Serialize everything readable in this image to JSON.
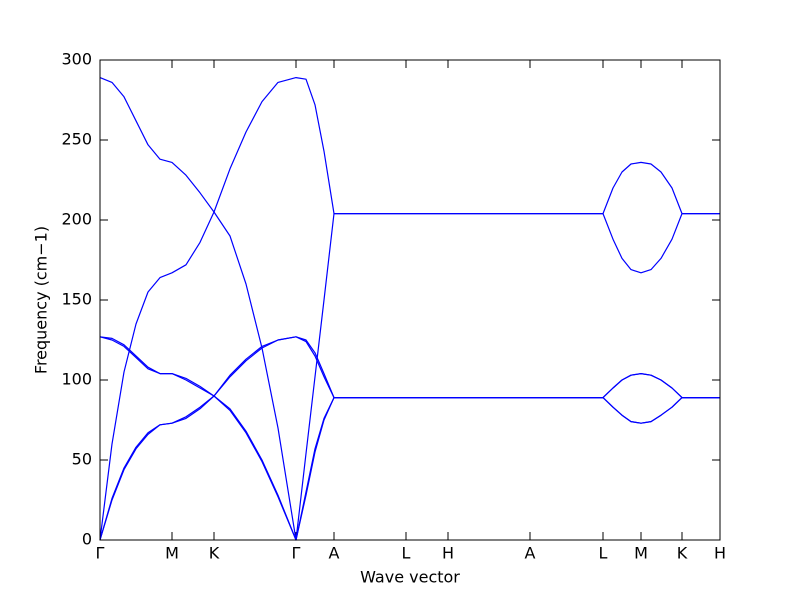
{
  "chart_data": {
    "type": "line",
    "xlabel": "Wave vector",
    "ylabel": "Frequency (cm−1)",
    "xlim": [
      0,
      6.2
    ],
    "xticks": [
      {
        "value": 0,
        "label": "Γ"
      },
      {
        "value": 0.72,
        "label": "M"
      },
      {
        "value": 1.14,
        "label": "K"
      },
      {
        "value": 1.96,
        "label": "Γ"
      },
      {
        "value": 2.34,
        "label": "A"
      },
      {
        "value": 3.06,
        "label": "L"
      },
      {
        "value": 3.48,
        "label": "H"
      },
      {
        "value": 4.3,
        "label": "A"
      },
      {
        "value": 5.03,
        "label": "L"
      },
      {
        "value": 5.41,
        "label": "M"
      },
      {
        "value": 5.82,
        "label": "K"
      },
      {
        "value": 6.2,
        "label": "H"
      }
    ],
    "ylim": [
      0,
      300
    ],
    "yticks": [
      0,
      50,
      100,
      150,
      200,
      250,
      300
    ],
    "grid": false,
    "x": [
      0,
      0.12,
      0.24,
      0.36,
      0.48,
      0.6,
      0.72,
      0.86,
      1.0,
      1.14,
      1.3,
      1.46,
      1.62,
      1.78,
      1.96,
      2.06,
      2.15,
      2.24,
      2.34,
      3.06,
      3.48,
      4.3,
      5.03,
      5.13,
      5.22,
      5.31,
      5.41,
      5.51,
      5.61,
      5.72,
      5.82,
      6.2
    ],
    "series": [
      {
        "color": "#0000ff",
        "values": [
          289,
          286,
          277,
          262,
          247,
          238,
          236,
          228,
          217,
          205,
          190,
          160,
          120,
          70,
          0,
          54,
          102,
          150,
          204,
          204,
          204,
          204,
          204,
          220,
          230,
          235,
          236,
          235,
          230,
          220,
          204,
          204
        ]
      },
      {
        "color": "#0000ff",
        "values": [
          0,
          60,
          105,
          135,
          155,
          164,
          167,
          172,
          186,
          205,
          232,
          255,
          274,
          286,
          289,
          288,
          272,
          243,
          204,
          204,
          204,
          204,
          204,
          188,
          176,
          169,
          167,
          169,
          176,
          188,
          204,
          204
        ]
      },
      {
        "color": "#0000ff",
        "values": [
          127,
          126,
          122,
          115,
          108,
          104,
          104,
          101,
          96,
          90,
          102,
          112,
          120,
          125,
          127,
          125,
          117,
          104,
          89,
          89,
          89,
          89,
          89,
          95,
          100,
          103,
          104,
          103,
          100,
          95,
          89,
          89
        ]
      },
      {
        "color": "#0000ff",
        "values": [
          0,
          25,
          44,
          57,
          66,
          72,
          73,
          76,
          82,
          90,
          82,
          68,
          50,
          28,
          0,
          28,
          55,
          75,
          89,
          89,
          89,
          89,
          89,
          83,
          78,
          74,
          73,
          74,
          78,
          83,
          89,
          89
        ]
      },
      {
        "color": "#0000ff",
        "values": [
          0,
          26,
          45,
          58,
          67,
          72,
          73,
          77,
          83,
          90,
          81,
          67,
          49,
          27,
          0,
          30,
          57,
          76,
          89,
          89,
          89,
          89,
          89,
          83,
          78,
          74,
          73,
          74,
          78,
          83,
          89,
          89
        ]
      },
      {
        "color": "#0000ff",
        "values": [
          127,
          125,
          121,
          114,
          107,
          104,
          104,
          100,
          95,
          90,
          103,
          113,
          121,
          125,
          127,
          124,
          115,
          102,
          89,
          89,
          89,
          89,
          89,
          95,
          100,
          103,
          104,
          103,
          100,
          95,
          89,
          89
        ]
      }
    ]
  }
}
